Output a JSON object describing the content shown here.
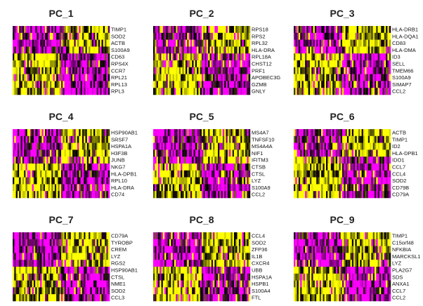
{
  "chart_data": {
    "type": "heatmap",
    "colors": {
      "low": "#FF00FF",
      "mid": "#000000",
      "high": "#FFFF00"
    },
    "grid": false,
    "legend": "none",
    "panels": [
      {
        "title": "PC_1",
        "genes": [
          "TIMP1",
          "SOD2",
          "ACTB",
          "S100A9",
          "CD63",
          "RPS4X",
          "CCR7",
          "RPL21",
          "RPL13",
          "RPL3"
        ],
        "n_top": 4
      },
      {
        "title": "PC_2",
        "genes": [
          "RPS18",
          "RPS2",
          "RPL32",
          "HLA-DRA",
          "RPL18A",
          "CHST12",
          "PRF1",
          "APOBEC3G",
          "GZMB",
          "GNLY"
        ],
        "n_top": 4
      },
      {
        "title": "PC_3",
        "genes": [
          "HLA-DRB1",
          "HLA-DQA1",
          "CD83",
          "HLA-DMA",
          "ID3",
          "SELL",
          "TMEM66",
          "S100A9",
          "SIMAP7",
          "CCL2"
        ],
        "n_top": 4
      },
      {
        "title": "PC_4",
        "genes": [
          "HSP90AB1",
          "SRSF7",
          "HSPA1A",
          "H3F3B",
          "JUNB",
          "NKG7",
          "HLA-DPB1",
          "RPL10",
          "HLA-DRA",
          "CD74"
        ],
        "n_top": 5
      },
      {
        "title": "PC_5",
        "genes": [
          "MS4A7",
          "TNFSF10",
          "MS4A4A",
          "NIF1",
          "IFITM3",
          "CTSB",
          "CTSL",
          "LYZ",
          "S100A9",
          "CCL2"
        ],
        "n_top": 5
      },
      {
        "title": "PC_6",
        "genes": [
          "ACTB",
          "TIMP1",
          "ID2",
          "HLA-DPB1",
          "IDO1",
          "CCL7",
          "CCL4",
          "SOD2",
          "CD79B",
          "CD79A"
        ],
        "n_top": 4
      },
      {
        "title": "PC_7",
        "genes": [
          "CD79A",
          "TYROBP",
          "CREM",
          "LYZ",
          "RGS2",
          "HSP90AB1",
          "CTSL",
          "NME1",
          "SOD2",
          "CCL3"
        ],
        "n_top": 5
      },
      {
        "title": "PC_8",
        "genes": [
          "CCL4",
          "SOD2",
          "ZFP36",
          "IL1B",
          "CXCR4",
          "UBB",
          "HSPA1A",
          "HSPB1",
          "S100A4",
          "FTL"
        ],
        "n_top": 5
      },
      {
        "title": "PC_9",
        "genes": [
          "TIMP1",
          "C15orf48",
          "NFKBIA",
          "MARCKSL1",
          "LYZ",
          "PLA2G7",
          "SDS",
          "ANXA1",
          "CCL7",
          "CCL2"
        ],
        "n_top": 5
      }
    ]
  }
}
